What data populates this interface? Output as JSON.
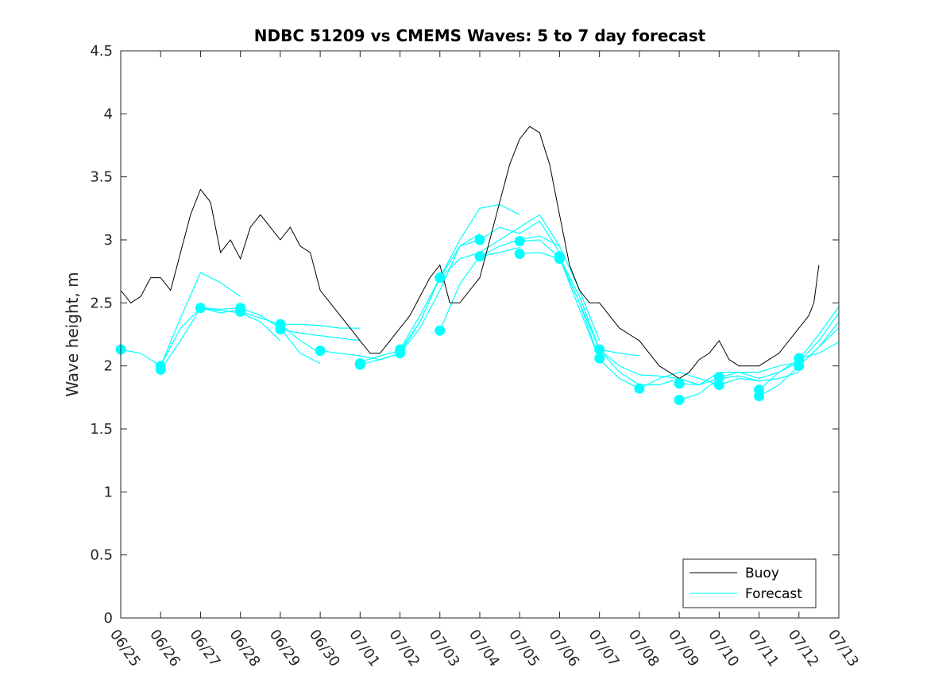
{
  "chart_data": {
    "type": "line",
    "title": "NDBC 51209 vs CMEMS Waves: 5 to 7 day forecast",
    "ylabel": "Wave height, m",
    "xlabel": "",
    "ylim": [
      0,
      4.5
    ],
    "yticks": [
      0,
      0.5,
      1,
      1.5,
      2,
      2.5,
      3,
      3.5,
      4,
      4.5
    ],
    "ytick_labels": [
      "0",
      "0.5",
      "1",
      "1.5",
      "2",
      "2.5",
      "3",
      "3.5",
      "4",
      "4.5"
    ],
    "xlim": [
      "06/25",
      "07/13"
    ],
    "xtick_labels": [
      "06/25",
      "06/26",
      "06/27",
      "06/28",
      "06/29",
      "06/30",
      "07/01",
      "07/02",
      "07/03",
      "07/04",
      "07/05",
      "07/06",
      "07/07",
      "07/08",
      "07/09",
      "07/10",
      "07/11",
      "07/12",
      "07/13"
    ],
    "grid": false,
    "legend": {
      "placement": "bottom-right",
      "entries": [
        "Buoy",
        "Forecast"
      ]
    },
    "colors": {
      "buoy": "#000000",
      "forecast": "#00ffff"
    },
    "buoy": {
      "name": "Buoy",
      "x": [
        "06/25 00:00",
        "06/25 06:00",
        "06/25 12:00",
        "06/25 18:00",
        "06/26 00:00",
        "06/26 06:00",
        "06/26 12:00",
        "06/26 18:00",
        "06/27 00:00",
        "06/27 06:00",
        "06/27 12:00",
        "06/27 18:00",
        "06/28 00:00",
        "06/28 06:00",
        "06/28 12:00",
        "06/28 18:00",
        "06/29 00:00",
        "06/29 06:00",
        "06/29 12:00",
        "06/29 18:00",
        "06/30 00:00",
        "06/30 06:00",
        "06/30 12:00",
        "06/30 18:00",
        "07/01 00:00",
        "07/01 06:00",
        "07/01 12:00",
        "07/01 18:00",
        "07/02 00:00",
        "07/02 06:00",
        "07/02 12:00",
        "07/02 18:00",
        "07/03 00:00",
        "07/03 06:00",
        "07/03 12:00",
        "07/03 18:00",
        "07/04 00:00",
        "07/04 06:00",
        "07/04 12:00",
        "07/04 18:00",
        "07/05 00:00",
        "07/05 06:00",
        "07/05 12:00",
        "07/05 18:00",
        "07/06 00:00",
        "07/06 06:00",
        "07/06 12:00",
        "07/06 18:00",
        "07/07 00:00",
        "07/07 06:00",
        "07/07 12:00",
        "07/07 18:00",
        "07/08 00:00",
        "07/08 06:00",
        "07/08 12:00",
        "07/08 18:00",
        "07/09 00:00",
        "07/09 06:00",
        "07/09 12:00",
        "07/09 18:00",
        "07/10 00:00",
        "07/10 06:00",
        "07/10 12:00",
        "07/10 18:00",
        "07/11 00:00",
        "07/11 06:00",
        "07/11 12:00",
        "07/11 18:00",
        "07/12 00:00",
        "07/12 06:00",
        "07/12 09:00",
        "07/12 12:00"
      ],
      "y": [
        2.6,
        2.5,
        2.55,
        2.7,
        2.7,
        2.6,
        2.9,
        3.2,
        3.4,
        3.3,
        2.9,
        3.0,
        2.85,
        3.1,
        3.2,
        3.1,
        3.0,
        3.1,
        2.95,
        2.9,
        2.6,
        2.5,
        2.4,
        2.3,
        2.2,
        2.1,
        2.1,
        2.2,
        2.3,
        2.4,
        2.55,
        2.7,
        2.8,
        2.5,
        2.5,
        2.6,
        2.7,
        3.0,
        3.3,
        3.6,
        3.8,
        3.9,
        3.85,
        3.6,
        3.2,
        2.8,
        2.6,
        2.5,
        2.5,
        2.4,
        2.3,
        2.25,
        2.2,
        2.1,
        2.0,
        1.95,
        1.9,
        1.95,
        2.05,
        2.1,
        2.2,
        2.05,
        2.0,
        2.0,
        2.0,
        2.05,
        2.1,
        2.2,
        2.3,
        2.4,
        2.5,
        2.8
      ]
    },
    "forecast_runs": [
      {
        "x": [
          "06/25 00:00",
          "06/25 12:00",
          "06/26 00:00",
          "06/26 12:00",
          "06/27 00:00",
          "06/27 12:00",
          "06/28 00:00"
        ],
        "y": [
          2.13,
          2.1,
          2.0,
          2.38,
          2.74,
          2.66,
          2.55
        ]
      },
      {
        "x": [
          "06/26 00:00",
          "06/26 12:00",
          "06/27 00:00",
          "06/27 12:00",
          "06/28 00:00",
          "06/28 12:00",
          "06/29 00:00"
        ],
        "y": [
          1.97,
          2.2,
          2.46,
          2.44,
          2.42,
          2.35,
          2.2
        ]
      },
      {
        "x": [
          "06/26 00:00",
          "06/26 12:00",
          "06/27 00:00",
          "06/27 12:00",
          "06/28 00:00"
        ],
        "y": [
          2.0,
          2.3,
          2.46,
          2.42,
          2.45
        ]
      },
      {
        "x": [
          "06/27 00:00",
          "06/27 12:00",
          "06/28 00:00",
          "06/28 12:00",
          "06/29 00:00",
          "06/29 12:00",
          "06/30 00:00"
        ],
        "y": [
          2.46,
          2.45,
          2.46,
          2.4,
          2.3,
          2.1,
          2.02
        ]
      },
      {
        "x": [
          "06/28 00:00",
          "06/28 12:00",
          "06/29 00:00",
          "06/29 12:00",
          "06/30 00:00"
        ],
        "y": [
          2.43,
          2.38,
          2.33,
          2.2,
          2.1
        ]
      },
      {
        "x": [
          "06/29 00:00",
          "06/29 12:00",
          "06/30 00:00",
          "06/30 12:00",
          "07/01 00:00"
        ],
        "y": [
          2.33,
          2.33,
          2.32,
          2.3,
          2.3
        ]
      },
      {
        "x": [
          "06/29 00:00",
          "06/29 12:00",
          "06/30 00:00",
          "06/30 12:00",
          "07/01 00:00"
        ],
        "y": [
          2.29,
          2.26,
          2.24,
          2.22,
          2.2
        ]
      },
      {
        "x": [
          "06/30 00:00",
          "06/30 12:00",
          "07/01 00:00",
          "07/01 12:00",
          "07/02 00:00"
        ],
        "y": [
          2.12,
          2.1,
          2.08,
          2.05,
          2.1
        ]
      },
      {
        "x": [
          "07/01 00:00",
          "07/01 12:00",
          "07/02 00:00",
          "07/02 12:00",
          "07/03 00:00",
          "07/03 12:00",
          "07/04 00:00"
        ],
        "y": [
          2.01,
          2.05,
          2.1,
          2.3,
          2.6,
          2.95,
          3.05
        ]
      },
      {
        "x": [
          "07/01 00:00",
          "07/01 12:00",
          "07/02 00:00",
          "07/02 12:00",
          "07/03 00:00"
        ],
        "y": [
          2.03,
          2.08,
          2.12,
          2.35,
          2.7
        ]
      },
      {
        "x": [
          "07/02 00:00",
          "07/02 12:00",
          "07/03 00:00",
          "07/03 12:00",
          "07/04 00:00"
        ],
        "y": [
          2.1,
          2.35,
          2.7,
          2.95,
          3.0
        ]
      },
      {
        "x": [
          "07/02 00:00",
          "07/02 12:00",
          "07/03 00:00",
          "07/03 12:00",
          "07/04 00:00",
          "07/04 12:00",
          "07/05 00:00"
        ],
        "y": [
          2.13,
          2.4,
          2.7,
          3.0,
          3.25,
          3.28,
          3.2
        ]
      },
      {
        "x": [
          "07/03 00:00",
          "07/03 12:00",
          "07/04 00:00",
          "07/04 12:00",
          "07/05 00:00",
          "07/05 12:00",
          "07/06 00:00"
        ],
        "y": [
          2.7,
          2.85,
          2.9,
          3.0,
          3.1,
          3.2,
          2.95
        ]
      },
      {
        "x": [
          "07/03 00:00",
          "07/03 12:00",
          "07/04 00:00",
          "07/04 12:00",
          "07/05 00:00"
        ],
        "y": [
          2.28,
          2.65,
          2.87,
          2.9,
          2.94
        ]
      },
      {
        "x": [
          "07/04 00:00",
          "07/04 12:00",
          "07/05 00:00",
          "07/05 12:00",
          "07/06 00:00"
        ],
        "y": [
          3.0,
          3.1,
          3.05,
          3.15,
          2.9
        ]
      },
      {
        "x": [
          "07/04 00:00",
          "07/04 12:00",
          "07/05 00:00",
          "07/05 12:00",
          "07/06 00:00",
          "07/06 12:00",
          "07/07 00:00"
        ],
        "y": [
          2.87,
          2.95,
          3.0,
          3.03,
          2.95,
          2.6,
          2.2
        ]
      },
      {
        "x": [
          "07/05 00:00",
          "07/05 12:00",
          "07/06 00:00",
          "07/06 12:00",
          "07/07 00:00",
          "07/07 12:00",
          "07/08 00:00"
        ],
        "y": [
          2.99,
          3.0,
          2.86,
          2.55,
          2.13,
          2.1,
          2.08
        ]
      },
      {
        "x": [
          "07/05 00:00",
          "07/05 12:00",
          "07/06 00:00",
          "07/06 12:00",
          "07/07 00:00"
        ],
        "y": [
          2.89,
          2.9,
          2.85,
          2.5,
          2.05
        ]
      },
      {
        "x": [
          "07/06 00:00",
          "07/06 12:00",
          "07/07 00:00",
          "07/07 12:00",
          "07/08 00:00",
          "07/08 12:00",
          "07/09 00:00"
        ],
        "y": [
          2.86,
          2.5,
          2.13,
          1.95,
          1.85,
          1.85,
          1.9
        ]
      },
      {
        "x": [
          "07/06 00:00",
          "07/06 12:00",
          "07/07 00:00",
          "07/07 12:00",
          "07/08 00:00"
        ],
        "y": [
          2.86,
          2.45,
          2.05,
          1.9,
          1.82
        ]
      },
      {
        "x": [
          "07/07 00:00",
          "07/07 12:00",
          "07/08 00:00",
          "07/08 12:00",
          "07/09 00:00",
          "07/09 12:00",
          "07/10 00:00"
        ],
        "y": [
          2.13,
          2.0,
          1.93,
          1.92,
          1.9,
          1.85,
          1.9
        ]
      },
      {
        "x": [
          "07/08 00:00",
          "07/08 12:00",
          "07/09 00:00",
          "07/09 12:00",
          "07/10 00:00"
        ],
        "y": [
          1.82,
          1.9,
          1.95,
          1.9,
          1.85
        ]
      },
      {
        "x": [
          "07/09 00:00",
          "07/09 12:00",
          "07/10 00:00",
          "07/10 12:00",
          "07/11 00:00",
          "07/11 12:00",
          "07/12 00:00"
        ],
        "y": [
          1.86,
          1.85,
          1.95,
          1.95,
          1.95,
          2.0,
          2.03
        ]
      },
      {
        "x": [
          "07/09 00:00",
          "07/09 12:00",
          "07/10 00:00",
          "07/10 12:00",
          "07/11 00:00"
        ],
        "y": [
          1.73,
          1.78,
          1.9,
          1.92,
          1.88
        ]
      },
      {
        "x": [
          "07/10 00:00",
          "07/10 12:00",
          "07/11 00:00",
          "07/11 12:00",
          "07/12 00:00",
          "07/12 12:00",
          "07/13 00:00"
        ],
        "y": [
          1.91,
          1.95,
          1.9,
          1.95,
          2.05,
          2.25,
          2.47
        ]
      },
      {
        "x": [
          "07/10 00:00",
          "07/10 12:00",
          "07/11 00:00",
          "07/11 12:00",
          "07/12 00:00"
        ],
        "y": [
          1.85,
          1.9,
          1.88,
          1.9,
          1.95
        ]
      },
      {
        "x": [
          "07/11 00:00",
          "07/11 12:00",
          "07/12 00:00",
          "07/12 12:00",
          "07/13 00:00"
        ],
        "y": [
          1.81,
          1.95,
          2.03,
          2.2,
          2.42
        ]
      },
      {
        "x": [
          "07/11 00:00",
          "07/11 12:00",
          "07/12 00:00",
          "07/12 12:00",
          "07/13 00:00"
        ],
        "y": [
          1.76,
          1.85,
          2.0,
          2.15,
          2.35
        ]
      },
      {
        "x": [
          "07/12 00:00",
          "07/12 12:00",
          "07/13 00:00"
        ],
        "y": [
          2.06,
          2.1,
          2.19
        ]
      },
      {
        "x": [
          "07/12 00:00",
          "07/12 12:00",
          "07/13 00:00"
        ],
        "y": [
          2.0,
          2.15,
          2.3
        ]
      }
    ],
    "forecast_init_points": {
      "x": [
        "06/25 00:00",
        "06/26 00:00",
        "06/26 00:00",
        "06/27 00:00",
        "06/28 00:00",
        "06/28 00:00",
        "06/29 00:00",
        "06/29 00:00",
        "06/30 00:00",
        "07/01 00:00",
        "07/01 00:00",
        "07/02 00:00",
        "07/02 00:00",
        "07/03 00:00",
        "07/03 00:00",
        "07/04 00:00",
        "07/04 00:00",
        "07/05 00:00",
        "07/05 00:00",
        "07/06 00:00",
        "07/06 00:00",
        "07/07 00:00",
        "07/07 00:00",
        "07/08 00:00",
        "07/09 00:00",
        "07/09 00:00",
        "07/10 00:00",
        "07/10 00:00",
        "07/11 00:00",
        "07/11 00:00",
        "07/12 00:00",
        "07/12 00:00"
      ],
      "y": [
        2.13,
        2.0,
        1.97,
        2.46,
        2.46,
        2.43,
        2.33,
        2.29,
        2.12,
        2.01,
        2.02,
        2.13,
        2.1,
        2.7,
        2.28,
        3.0,
        2.87,
        2.99,
        2.89,
        2.87,
        2.85,
        2.13,
        2.06,
        1.82,
        1.86,
        1.73,
        1.91,
        1.85,
        1.81,
        1.76,
        2.06,
        2.0
      ]
    }
  }
}
